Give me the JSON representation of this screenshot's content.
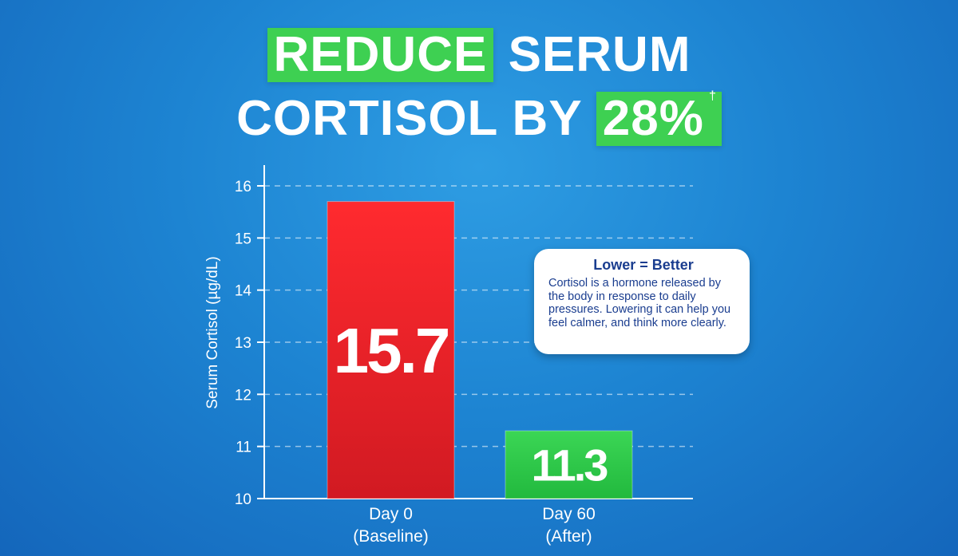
{
  "headline": {
    "line1_highlight": "REDUCE",
    "line1_rest": "SERUM",
    "line2_text": "CORTISOL BY",
    "line2_highlight": "28%",
    "footnote_mark": "†"
  },
  "chart_data": {
    "type": "bar",
    "categories": [
      "Day 0\n(Baseline)",
      "Day 60\n(After)"
    ],
    "category_lines": [
      [
        "Day 0",
        "(Baseline)"
      ],
      [
        "Day 60",
        "(After)"
      ]
    ],
    "values": [
      15.7,
      11.3
    ],
    "value_labels": [
      "15.7",
      "11.3"
    ],
    "bar_colors": [
      "#e41d25",
      "#2fcb49"
    ],
    "ylabel": "Serum Cortisol (µg/dL)",
    "ylim": [
      10,
      16
    ],
    "yticks": [
      "10",
      "11",
      "12",
      "13",
      "14",
      "15",
      "16"
    ],
    "grid": true,
    "grid_style": "dashed"
  },
  "callout": {
    "title": "Lower = Better",
    "body": "Cortisol is a hormone released by the body in response to daily pressures. Lowering it can help you feel calmer, and think more clearly."
  },
  "colors": {
    "background": "#1d84d2",
    "highlight": "#3ed052",
    "callout_text": "#1a3d8f"
  }
}
